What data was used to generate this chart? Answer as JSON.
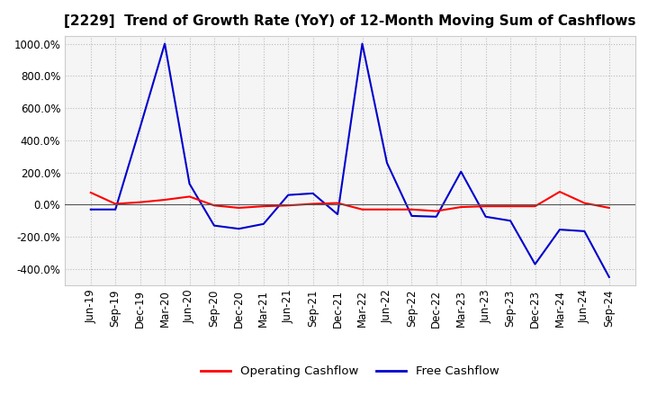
{
  "title": "[2229]  Trend of Growth Rate (YoY) of 12-Month Moving Sum of Cashflows",
  "x_labels": [
    "Jun-19",
    "Sep-19",
    "Dec-19",
    "Mar-20",
    "Jun-20",
    "Sep-20",
    "Dec-20",
    "Mar-21",
    "Jun-21",
    "Sep-21",
    "Dec-21",
    "Mar-22",
    "Jun-22",
    "Sep-22",
    "Dec-22",
    "Mar-23",
    "Jun-23",
    "Sep-23",
    "Dec-23",
    "Mar-24",
    "Jun-24",
    "Sep-24"
  ],
  "operating_cashflow": [
    75,
    5,
    15,
    30,
    50,
    -5,
    -20,
    -10,
    -5,
    5,
    10,
    -30,
    -30,
    -30,
    -40,
    -15,
    -10,
    -10,
    -10,
    80,
    10,
    -20
  ],
  "free_cashflow": [
    -30,
    -30,
    480,
    1000,
    130,
    -130,
    -150,
    -120,
    60,
    70,
    -60,
    1000,
    260,
    -70,
    -75,
    205,
    -75,
    -100,
    -370,
    -155,
    -165,
    -450
  ],
  "operating_color": "#ff0000",
  "free_color": "#0000cd",
  "background_color": "#ffffff",
  "plot_background": "#f5f5f5",
  "grid_color": "#bbbbbb",
  "zero_line_color": "#555555",
  "ylim": [
    -500,
    1050
  ],
  "yticks": [
    -400,
    -200,
    0,
    200,
    400,
    600,
    800,
    1000
  ],
  "legend_labels": [
    "Operating Cashflow",
    "Free Cashflow"
  ],
  "title_fontsize": 11,
  "axis_fontsize": 8.5,
  "legend_fontsize": 9.5
}
